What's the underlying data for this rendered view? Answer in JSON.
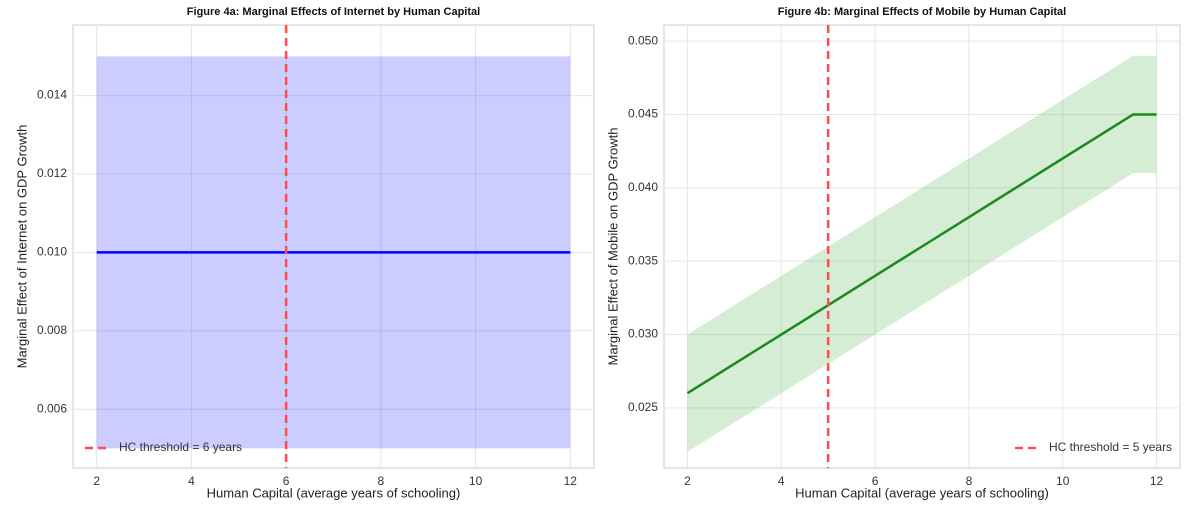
{
  "chart_data": [
    {
      "type": "line",
      "title": "Figure 4a: Marginal Effects of Internet by Human Capital",
      "xlabel": "Human Capital (average years of schooling)",
      "ylabel": "Marginal Effect of Internet on GDP Growth",
      "x": [
        2,
        12
      ],
      "series": [
        {
          "color": "#0000ff",
          "band_color": "#0000ff",
          "values": [
            0.01,
            0.01
          ],
          "lower": [
            0.005,
            0.005
          ],
          "upper": [
            0.015,
            0.015
          ]
        }
      ],
      "vline": {
        "x": 6,
        "label": "HC threshold = 6 years",
        "color": "#ff4d4d"
      },
      "xlim": [
        1.5,
        12.5
      ],
      "xticks": [
        2,
        4,
        6,
        8,
        10,
        12
      ],
      "ylim": [
        0.0045,
        0.0158
      ],
      "yticks": [
        0.006,
        0.008,
        {
          "value": 0.01,
          "label": "0.010"
        },
        0.012,
        0.014
      ],
      "grid": true,
      "legend": "lower left"
    },
    {
      "type": "line",
      "title": "Figure 4b: Marginal Effects of Mobile by Human Capital",
      "xlabel": "Human Capital (average years of schooling)",
      "ylabel": "Marginal Effect of Mobile on GDP Growth",
      "x": [
        2,
        3,
        4,
        5,
        6,
        7,
        8,
        9,
        10,
        11,
        11.5,
        12
      ],
      "series": [
        {
          "color": "#1a8a1a",
          "band_color": "#2ca02c",
          "values": [
            0.026,
            0.028,
            0.03,
            0.032,
            0.034,
            0.036,
            0.038,
            0.04,
            0.042,
            0.044,
            0.045,
            0.045
          ],
          "lower": [
            0.022,
            0.024,
            0.026,
            0.028,
            0.03,
            0.032,
            0.034,
            0.036,
            0.038,
            0.04,
            0.041,
            0.041
          ],
          "upper": [
            0.03,
            0.032,
            0.034,
            0.036,
            0.038,
            0.04,
            0.042,
            0.044,
            0.046,
            0.048,
            0.049,
            0.049
          ]
        }
      ],
      "vline": {
        "x": 5,
        "label": "HC threshold = 5 years",
        "color": "#ff4d4d"
      },
      "xlim": [
        1.5,
        12.5
      ],
      "xticks": [
        2,
        4,
        6,
        8,
        10,
        12
      ],
      "ylim": [
        0.0209,
        0.0511
      ],
      "yticks": [
        0.025,
        {
          "value": 0.03,
          "label": "0.030"
        },
        0.035,
        {
          "value": 0.04,
          "label": "0.040"
        },
        0.045,
        {
          "value": 0.05,
          "label": "0.050"
        }
      ],
      "grid": true,
      "legend": "lower right"
    }
  ]
}
